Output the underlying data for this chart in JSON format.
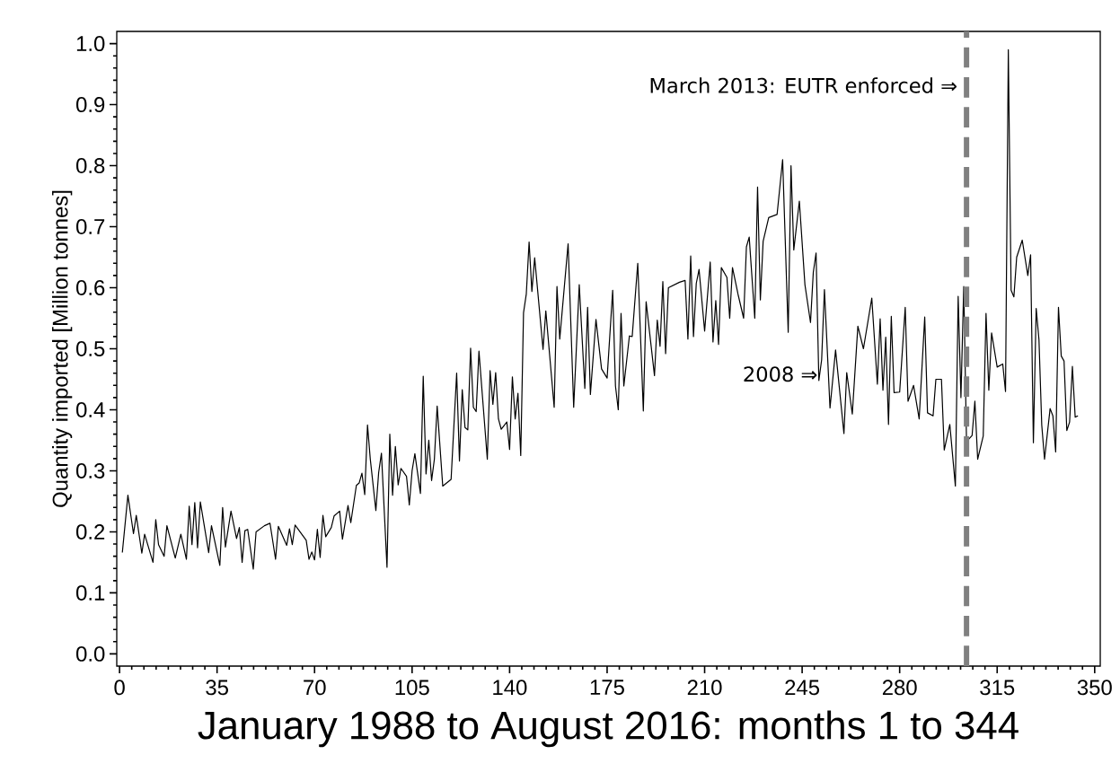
{
  "chart_data": {
    "type": "line",
    "xlabel": "January 1988 to August 2016: months 1 to 344",
    "ylabel": "Quantity imported [Million tonnes]",
    "x": [
      1,
      3,
      5,
      6,
      8,
      9,
      12,
      13,
      14,
      16,
      17,
      20,
      22,
      24,
      25,
      26,
      27,
      28,
      29,
      32,
      33,
      36,
      37,
      38,
      40,
      42,
      43,
      44,
      45,
      46,
      48,
      49,
      52,
      54,
      56,
      57,
      60,
      61,
      62,
      63,
      67,
      68,
      69,
      70,
      71,
      72,
      73,
      74,
      76,
      77,
      79,
      80,
      82,
      83,
      85,
      86,
      87,
      88,
      89,
      90,
      92,
      93,
      94,
      96,
      97,
      98,
      99,
      100,
      101,
      103,
      104,
      105,
      106,
      108,
      109,
      110,
      111,
      112,
      113,
      114,
      116,
      119,
      121,
      122,
      123,
      124,
      125,
      126,
      127,
      128,
      129,
      132,
      133,
      134,
      135,
      136,
      137,
      139,
      140,
      141,
      142,
      143,
      144,
      145,
      146,
      147,
      148,
      149,
      152,
      153,
      156,
      157,
      158,
      161,
      163,
      165,
      167,
      168,
      169,
      171,
      173,
      175,
      177,
      178,
      179,
      180,
      181,
      183,
      184,
      186,
      188,
      189,
      192,
      193,
      194,
      195,
      196,
      197,
      201,
      203,
      204,
      205,
      206,
      207,
      208,
      210,
      212,
      213,
      214,
      215,
      216,
      218,
      219,
      220,
      222,
      224,
      225,
      226,
      228,
      229,
      230,
      231,
      233,
      236,
      238,
      240,
      241,
      242,
      244,
      246,
      248,
      249,
      250,
      251,
      252,
      253,
      255,
      257,
      260,
      261,
      263,
      265,
      267,
      270,
      272,
      273,
      274,
      275,
      276,
      277,
      278,
      280,
      282,
      283,
      285,
      287,
      289,
      290,
      292,
      293,
      295,
      296,
      298,
      300,
      301,
      302,
      303,
      304,
      306,
      307,
      308,
      310,
      311,
      312,
      313,
      315,
      317,
      318,
      319,
      320,
      321,
      322,
      324,
      326,
      327,
      328,
      329,
      330,
      331,
      332,
      334,
      335,
      336,
      337,
      338,
      339,
      340,
      341,
      342,
      343,
      344
    ],
    "series": [
      {
        "color": "#000000",
        "values": [
          0.166,
          0.26,
          0.197,
          0.227,
          0.165,
          0.196,
          0.15,
          0.22,
          0.179,
          0.16,
          0.21,
          0.157,
          0.196,
          0.155,
          0.242,
          0.179,
          0.248,
          0.174,
          0.249,
          0.166,
          0.21,
          0.145,
          0.24,
          0.175,
          0.234,
          0.189,
          0.207,
          0.15,
          0.202,
          0.204,
          0.139,
          0.2,
          0.21,
          0.214,
          0.155,
          0.209,
          0.178,
          0.205,
          0.179,
          0.211,
          0.186,
          0.155,
          0.167,
          0.154,
          0.204,
          0.158,
          0.227,
          0.192,
          0.207,
          0.226,
          0.234,
          0.188,
          0.243,
          0.215,
          0.276,
          0.28,
          0.296,
          0.261,
          0.375,
          0.319,
          0.235,
          0.297,
          0.329,
          0.142,
          0.36,
          0.26,
          0.34,
          0.277,
          0.304,
          0.291,
          0.244,
          0.3,
          0.328,
          0.263,
          0.455,
          0.295,
          0.35,
          0.284,
          0.319,
          0.406,
          0.275,
          0.286,
          0.46,
          0.316,
          0.433,
          0.371,
          0.367,
          0.501,
          0.404,
          0.397,
          0.496,
          0.319,
          0.464,
          0.409,
          0.461,
          0.385,
          0.368,
          0.38,
          0.335,
          0.454,
          0.385,
          0.427,
          0.325,
          0.559,
          0.59,
          0.675,
          0.594,
          0.649,
          0.499,
          0.562,
          0.404,
          0.602,
          0.516,
          0.672,
          0.404,
          0.605,
          0.435,
          0.568,
          0.425,
          0.548,
          0.467,
          0.452,
          0.596,
          0.439,
          0.4,
          0.558,
          0.439,
          0.521,
          0.52,
          0.64,
          0.398,
          0.577,
          0.456,
          0.547,
          0.504,
          0.61,
          0.492,
          0.6,
          0.609,
          0.612,
          0.516,
          0.652,
          0.52,
          0.607,
          0.63,
          0.529,
          0.642,
          0.511,
          0.579,
          0.507,
          0.633,
          0.617,
          0.55,
          0.633,
          0.589,
          0.55,
          0.667,
          0.683,
          0.55,
          0.765,
          0.58,
          0.676,
          0.715,
          0.72,
          0.81,
          0.527,
          0.8,
          0.662,
          0.742,
          0.605,
          0.543,
          0.625,
          0.657,
          0.448,
          0.482,
          0.597,
          0.403,
          0.498,
          0.361,
          0.461,
          0.393,
          0.537,
          0.5,
          0.583,
          0.442,
          0.549,
          0.432,
          0.519,
          0.376,
          0.553,
          0.428,
          0.429,
          0.568,
          0.414,
          0.44,
          0.385,
          0.552,
          0.395,
          0.39,
          0.45,
          0.45,
          0.334,
          0.376,
          0.275,
          0.586,
          0.42,
          0.602,
          0.348,
          0.358,
          0.414,
          0.319,
          0.357,
          0.558,
          0.432,
          0.526,
          0.47,
          0.475,
          0.43,
          0.99,
          0.596,
          0.585,
          0.65,
          0.678,
          0.62,
          0.654,
          0.346,
          0.566,
          0.515,
          0.375,
          0.319,
          0.402,
          0.39,
          0.331,
          0.568,
          0.488,
          0.48,
          0.366,
          0.38,
          0.471,
          0.388,
          0.39
        ]
      }
    ],
    "xlim": [
      -1,
      352
    ],
    "ylim": [
      -0.02,
      1.02
    ],
    "xticks": [
      0,
      35,
      70,
      105,
      140,
      175,
      210,
      245,
      280,
      315,
      350
    ],
    "yticks": [
      {
        "value": 0,
        "label": "0.0"
      },
      {
        "value": 0.1,
        "label": "0.1"
      },
      {
        "value": 0.2,
        "label": "0.2"
      },
      {
        "value": 0.3,
        "label": "0.3"
      },
      {
        "value": 0.4,
        "label": "0.4"
      },
      {
        "value": 0.5,
        "label": "0.5"
      },
      {
        "value": 0.6,
        "label": "0.6"
      },
      {
        "value": 0.7,
        "label": "0.7"
      },
      {
        "value": 0.8,
        "label": "0.8"
      },
      {
        "value": 0.9,
        "label": "0.9"
      },
      {
        "value": 1,
        "label": "1.0"
      }
    ],
    "ref_lines": [
      {
        "axis": "x",
        "value": 304,
        "label": "March 2013: EUTR enforced ⇒",
        "color": "#808080",
        "line_style": "dashed"
      }
    ],
    "annotations": [
      "2008 ⇒"
    ],
    "grid": false,
    "marker": "none",
    "line_style": "solid"
  }
}
